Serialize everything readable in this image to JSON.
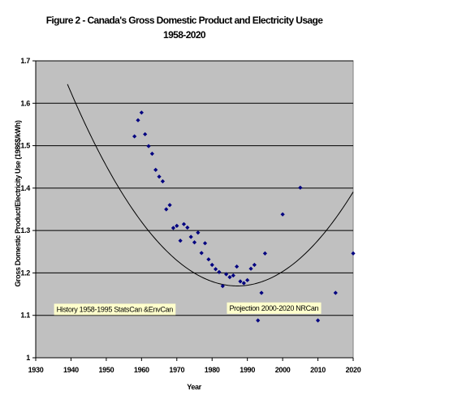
{
  "chart_data": {
    "type": "scatter",
    "title": "Figure 2 - Canada's Gross Domestic Product and Electricity Usage",
    "subtitle": "1958-2020",
    "xlabel": "Year",
    "ylabel": "Gross Domestic Product/Electricity Use (1986$/kWh)",
    "xlim": [
      1930,
      2020
    ],
    "ylim": [
      1,
      1.7
    ],
    "xticks": [
      "1930",
      "1940",
      "1950",
      "1960",
      "1970",
      "1980",
      "1990",
      "2000",
      "2010",
      "2020"
    ],
    "yticks": [
      "1",
      "1.1",
      "1.2",
      "1.3",
      "1.4",
      "1.5",
      "1.6",
      "1.7"
    ],
    "grid": "horizontal",
    "marker_color": "#000080",
    "plot_background": "#c0c0c0",
    "annotations": [
      {
        "text": "History 1958-1995 StatsCan &EnvCan",
        "x": 1935.2,
        "y": 1.114
      },
      {
        "text": "Projection 2000-2020 NRCan",
        "x": 1984.2,
        "y": 1.117
      }
    ],
    "series": [
      {
        "marker": "diamond",
        "x": [
          1958,
          1959,
          1960,
          1961,
          1962,
          1963,
          1964,
          1965,
          1966,
          1967,
          1968,
          1969,
          1970,
          1971,
          1972,
          1973,
          1974,
          1975,
          1976,
          1977,
          1978,
          1979,
          1980,
          1981,
          1982,
          1983,
          1984,
          1985,
          1986,
          1987,
          1988,
          1989,
          1990,
          1991,
          1992,
          1993,
          1994,
          1995,
          2000,
          2005,
          2010,
          2015,
          2020
        ],
        "y": [
          1.522,
          1.56,
          1.578,
          1.527,
          1.499,
          1.481,
          1.443,
          1.427,
          1.416,
          1.35,
          1.36,
          1.306,
          1.311,
          1.276,
          1.315,
          1.307,
          1.285,
          1.272,
          1.295,
          1.247,
          1.27,
          1.232,
          1.219,
          1.209,
          1.202,
          1.169,
          1.197,
          1.19,
          1.194,
          1.215,
          1.18,
          1.176,
          1.183,
          1.21,
          1.219,
          1.088,
          1.153,
          1.246,
          1.338,
          1.401,
          1.088,
          1.153,
          1.246
        ]
      }
    ],
    "trendline": {
      "type": "polynomial",
      "x_range": [
        1939,
        2020
      ],
      "points": [
        {
          "x": 1939,
          "y": 1.645
        },
        {
          "x": 1990,
          "y": 1.171
        },
        {
          "x": 2020,
          "y": 1.391
        }
      ]
    }
  }
}
